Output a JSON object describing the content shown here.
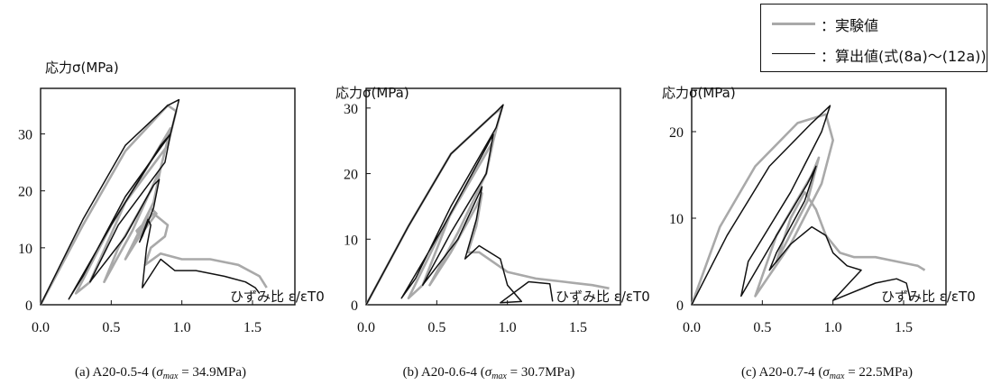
{
  "legend": {
    "experimental_label": "：実験値",
    "calculated_label": "：算出値(式(8a)〜(12a))",
    "experimental_color": "#a9a9a9",
    "calculated_color": "#111111"
  },
  "chart_data": [
    {
      "type": "line",
      "ylabel": "応力σ(MPa)",
      "xlabel": "ひずみ比 ε/εT0",
      "xlim": [
        0,
        1.8
      ],
      "ylim": [
        0,
        38
      ],
      "xticks": [
        "0.0",
        "0.5",
        "1.0",
        "1.5"
      ],
      "xtick_values": [
        0,
        0.5,
        1.0,
        1.5
      ],
      "yticks": [
        "0",
        "10",
        "20",
        "30"
      ],
      "ytick_values": [
        0,
        10,
        20,
        30
      ],
      "caption_prefix": "(a) A20-0.5-4 (",
      "caption_symbol": "σ",
      "caption_sub": "max",
      "caption_suffix": " = 34.9MPa)",
      "sigma_max": 34.9,
      "series": [
        {
          "name": "実験値",
          "color": "#a9a9a9",
          "x": [
            0,
            0.3,
            0.6,
            0.9,
            0.96,
            0.9,
            0.6,
            0.35,
            0.25,
            0.5,
            0.8,
            0.92,
            0.85,
            0.65,
            0.45,
            0.55,
            0.78,
            0.85,
            0.8,
            0.6,
            0.7,
            0.78,
            0.82,
            0.7,
            0.68,
            0.8,
            0.9,
            0.88,
            0.78,
            0.74,
            0.85,
            1.0,
            1.2,
            1.4,
            1.55,
            1.6
          ],
          "y": [
            0,
            14,
            27,
            35,
            34,
            28,
            18,
            4,
            2,
            14,
            26,
            31,
            24,
            13,
            4,
            10,
            20,
            24,
            18,
            8,
            12,
            17,
            16,
            12,
            13,
            16,
            14,
            12,
            10,
            7,
            9,
            8,
            8,
            7,
            5,
            3
          ]
        },
        {
          "name": "算出値",
          "color": "#111111",
          "x": [
            0,
            0.3,
            0.6,
            0.9,
            0.98,
            0.92,
            0.6,
            0.3,
            0.2,
            0.5,
            0.85,
            0.92,
            0.88,
            0.55,
            0.35,
            0.6,
            0.8,
            0.84,
            0.8,
            0.72,
            0.7,
            0.76,
            0.78,
            0.75,
            0.72,
            0.85,
            0.95,
            1.1,
            1.3,
            1.45,
            1.52,
            1.55
          ],
          "y": [
            0,
            15,
            28,
            35,
            36,
            30,
            19,
            5,
            1,
            14,
            28,
            30,
            25,
            14,
            4,
            12,
            21,
            22,
            17,
            12,
            11,
            15,
            14,
            10,
            3,
            8,
            6,
            6,
            5,
            4,
            3,
            2
          ]
        }
      ]
    },
    {
      "type": "line",
      "ylabel": "応力σ(MPa)",
      "xlabel": "ひずみ比 ε/εT0",
      "xlim": [
        0,
        1.8
      ],
      "ylim": [
        0,
        33
      ],
      "xticks": [
        "0.0",
        "0.5",
        "1.0",
        "1.5"
      ],
      "xtick_values": [
        0,
        0.5,
        1.0,
        1.5
      ],
      "yticks": [
        "0",
        "10",
        "20",
        "30"
      ],
      "ytick_values": [
        0,
        10,
        20,
        30
      ],
      "caption_prefix": "(b) A20-0.6-4 (",
      "caption_symbol": "σ",
      "caption_sub": "max",
      "caption_suffix": " = 30.7MPa)",
      "sigma_max": 30.7,
      "series": [
        {
          "name": "実験値",
          "color": "#a9a9a9",
          "x": [
            0,
            0.3,
            0.6,
            0.9,
            0.96,
            0.9,
            0.6,
            0.4,
            0.3,
            0.55,
            0.82,
            0.9,
            0.85,
            0.65,
            0.45,
            0.6,
            0.78,
            0.82,
            0.78,
            0.72,
            0.8,
            1.0,
            1.2,
            1.4,
            1.6,
            1.72
          ],
          "y": [
            0,
            12,
            23,
            29,
            30,
            25,
            14,
            3,
            1,
            12,
            22,
            25,
            20,
            11,
            3,
            8,
            15,
            17,
            12,
            8,
            8,
            5,
            4,
            3.5,
            3,
            2.5
          ]
        },
        {
          "name": "算出値",
          "color": "#111111",
          "x": [
            0,
            0.3,
            0.6,
            0.9,
            0.97,
            0.92,
            0.6,
            0.35,
            0.25,
            0.55,
            0.85,
            0.9,
            0.85,
            0.6,
            0.4,
            0.65,
            0.8,
            0.82,
            0.78,
            0.7,
            0.75,
            0.8,
            0.95,
            1.0,
            1.1,
            0.95,
            1.15,
            1.3,
            1.32
          ],
          "y": [
            0,
            12,
            23,
            29,
            30.5,
            27,
            15,
            4,
            1,
            12,
            24,
            26,
            20,
            11,
            3,
            10,
            17,
            18,
            13,
            7,
            8,
            9,
            7,
            3,
            0.5,
            0.3,
            3.5,
            3.2,
            0.5
          ]
        }
      ]
    },
    {
      "type": "line",
      "ylabel": "応力σ(MPa)",
      "xlabel": "ひずみ比 ε/εT0",
      "xlim": [
        0,
        1.8
      ],
      "ylim": [
        0,
        25
      ],
      "xticks": [
        "0.0",
        "0.5",
        "1.0",
        "1.5"
      ],
      "xtick_values": [
        0,
        0.5,
        1.0,
        1.5
      ],
      "yticks": [
        "0",
        "10",
        "20"
      ],
      "ytick_values": [
        0,
        10,
        20
      ],
      "caption_prefix": "(c) A20-0.7-4 (",
      "caption_symbol": "σ",
      "caption_sub": "max",
      "caption_suffix": " = 22.5MPa)",
      "sigma_max": 22.5,
      "series": [
        {
          "name": "実験値",
          "color": "#a9a9a9",
          "x": [
            0,
            0.2,
            0.45,
            0.75,
            0.95,
            1.0,
            0.92,
            0.7,
            0.45,
            0.6,
            0.85,
            0.9,
            0.82,
            0.6,
            0.7,
            0.8,
            0.88,
            0.95,
            1.0,
            1.05,
            1.15,
            1.3,
            1.45,
            1.6,
            1.65
          ],
          "y": [
            0,
            9,
            16,
            21,
            22,
            19,
            14,
            7,
            1,
            8,
            15,
            17,
            12,
            5,
            10,
            13,
            11,
            8,
            7,
            6,
            5.5,
            5.5,
            5,
            4.5,
            4
          ]
        },
        {
          "name": "算出値",
          "color": "#111111",
          "x": [
            0,
            0.25,
            0.55,
            0.85,
            0.98,
            0.92,
            0.7,
            0.4,
            0.35,
            0.6,
            0.82,
            0.88,
            0.8,
            0.6,
            0.55,
            0.7,
            0.85,
            0.95,
            1.0,
            1.1,
            1.2,
            1.0,
            1.3,
            1.45,
            1.52,
            1.55
          ],
          "y": [
            0,
            8,
            16,
            21,
            23,
            20,
            13,
            5,
            1,
            8,
            14,
            16,
            12,
            6,
            4,
            7,
            9,
            8,
            6,
            4.5,
            4,
            0.5,
            2.5,
            3,
            2.5,
            0.5
          ]
        }
      ]
    }
  ]
}
